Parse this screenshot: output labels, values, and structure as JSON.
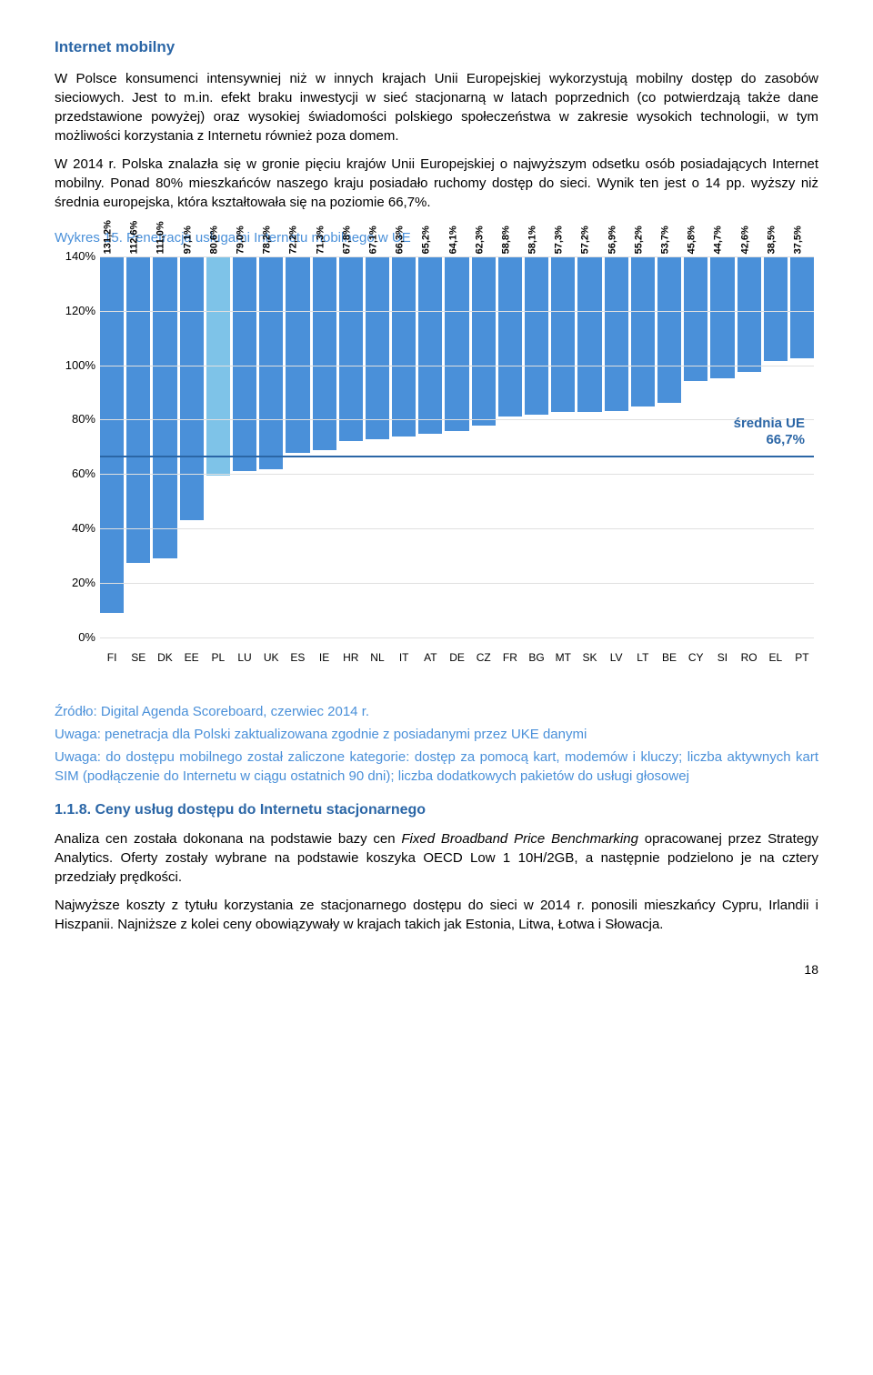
{
  "heading": "Internet mobilny",
  "heading_color": "#2b66a6",
  "para1": "W Polsce konsumenci intensywniej niż w innych krajach Unii Europejskiej wykorzystują mobilny dostęp do zasobów sieciowych. Jest to m.in. efekt braku inwestycji w sieć stacjonarną w latach poprzednich (co potwierdzają także dane przedstawione powyżej) oraz wysokiej świadomości polskiego społeczeństwa w zakresie wysokich technologii, w tym możliwości korzystania z Internetu również poza domem.",
  "para2": "W 2014 r. Polska znalazła się w gronie pięciu krajów Unii Europejskiej o najwyższym odsetku osób posiadających Internet mobilny. Ponad 80% mieszkańców naszego kraju posiadało ruchomy dostęp do sieci. Wynik ten jest o 14 pp. wyższy niż średnia europejska, która kształtowała się na poziomie 66,7%.",
  "chart": {
    "title": "Wykres 15. Penetracja usługami Internetu mobilnego w UE",
    "title_color": "#4a90d9",
    "type": "bar",
    "y_min": 0,
    "y_max": 140,
    "y_ticks": [
      0,
      20,
      40,
      60,
      80,
      100,
      120,
      140
    ],
    "y_tick_suffix": "%",
    "mean_value": 66.7,
    "mean_label_line1": "średnia UE",
    "mean_label_line2": "66,7%",
    "mean_color": "#2b66a6",
    "default_bar_color": "#4a90d9",
    "highlight_bar_color": "#7ec3e8",
    "highlight_index": 4,
    "categories": [
      "FI",
      "SE",
      "DK",
      "EE",
      "PL",
      "LU",
      "UK",
      "ES",
      "IE",
      "HR",
      "NL",
      "IT",
      "AT",
      "DE",
      "CZ",
      "FR",
      "BG",
      "MT",
      "SK",
      "LV",
      "LT",
      "BE",
      "CY",
      "SI",
      "RO",
      "EL",
      "PT"
    ],
    "values": [
      131.2,
      112.6,
      111.0,
      97.1,
      80.6,
      79.0,
      78.2,
      72.2,
      71.3,
      67.8,
      67.1,
      66.3,
      65.2,
      64.1,
      62.3,
      58.8,
      58.1,
      57.3,
      57.2,
      56.9,
      55.2,
      53.7,
      45.8,
      44.7,
      42.6,
      38.5,
      37.5
    ],
    "value_labels": [
      "131,2%",
      "112,6%",
      "111,0%",
      "97,1%",
      "80,6%",
      "79,0%",
      "78,2%",
      "72,2%",
      "71,3%",
      "67,8%",
      "67,1%",
      "66,3%",
      "65,2%",
      "64,1%",
      "62,3%",
      "58,8%",
      "58,1%",
      "57,3%",
      "57,2%",
      "56,9%",
      "55,2%",
      "53,7%",
      "45,8%",
      "44,7%",
      "42,6%",
      "38,5%",
      "37,5%"
    ]
  },
  "source": "Źródło: Digital Agenda Scoreboard, czerwiec 2014 r.",
  "source_color": "#4a90d9",
  "note1": "Uwaga: penetracja dla Polski zaktualizowana zgodnie z posiadanymi przez UKE danymi",
  "note2": "Uwaga: do dostępu mobilnego został zaliczone kategorie: dostęp za pomocą kart, modemów i kluczy; liczba aktywnych kart SIM (podłączenie do Internetu w ciągu ostatnich 90 dni); liczba dodatkowych pakietów do usługi głosowej",
  "note_color": "#4a90d9",
  "subheading": "1.1.8. Ceny usług dostępu do Internetu stacjonarnego",
  "subheading_color": "#2b66a6",
  "para3_part1": "Analiza cen została dokonana na podstawie bazy cen ",
  "para3_italic1": "Fixed Broadband Price Benchmarking",
  "para3_part2": " opracowanej przez Strategy Analytics. Oferty zostały wybrane na podstawie koszyka OECD Low 1 10H/2GB, a następnie podzielono je na cztery przedziały prędkości.",
  "para4": "Najwyższe koszty z tytułu korzystania ze stacjonarnego dostępu do sieci w 2014 r. ponosili mieszkańcy Cypru, Irlandii i Hiszpanii. Najniższe z kolei ceny obowiązywały w krajach takich jak Estonia, Litwa, Łotwa i Słowacja.",
  "page_number": "18"
}
